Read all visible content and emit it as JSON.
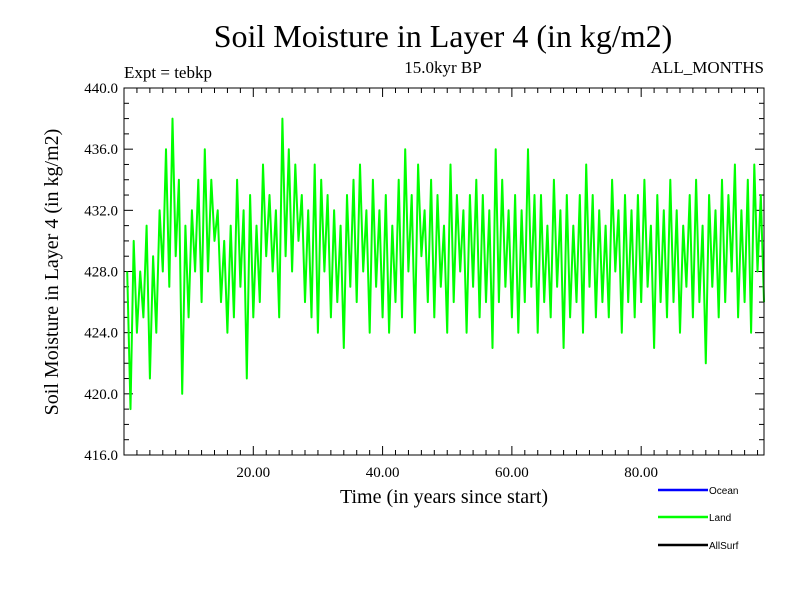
{
  "chart_data": {
    "type": "line",
    "title": "Soil Moisture in Layer 4 (in kg/m2)",
    "subtitle": "15.0kyr BP",
    "experiment_label": "Expt = tebkp",
    "period_label": "ALL_MONTHS",
    "xlabel": "Time (in years since start)",
    "ylabel": "Soil Moisture in Layer 4 (in kg/m2)",
    "xlim": [
      0,
      99
    ],
    "ylim": [
      416,
      440
    ],
    "x_ticks": [
      20,
      40,
      60,
      80
    ],
    "x_tick_labels": [
      "20.00",
      "40.00",
      "60.00",
      "80.00"
    ],
    "y_ticks": [
      416,
      420,
      424,
      428,
      432,
      436,
      440
    ],
    "y_tick_labels": [
      "416.0",
      "420.0",
      "424.0",
      "428.0",
      "432.0",
      "436.0",
      "440.0"
    ],
    "legend": [
      {
        "name": "Ocean",
        "color": "#0000ff"
      },
      {
        "name": "Land",
        "color": "#00ff00"
      },
      {
        "name": "AllSurf",
        "color": "#000000"
      }
    ],
    "legend_position": "bottom-right",
    "series": [
      {
        "name": "Land",
        "color": "#00ff00",
        "x_start": 0.5,
        "x_step": 0.5,
        "values": [
          428,
          419,
          430,
          424,
          428,
          425,
          431,
          421,
          429,
          424,
          432,
          428,
          436,
          427,
          438,
          429,
          434,
          420,
          431,
          425,
          432,
          428,
          434,
          426,
          436,
          428,
          434,
          430,
          432,
          426,
          430,
          424,
          431,
          425,
          434,
          427,
          432,
          421,
          433,
          425,
          431,
          426,
          435,
          429,
          433,
          428,
          432,
          425,
          438,
          429,
          436,
          428,
          435,
          430,
          433,
          426,
          432,
          425,
          435,
          424,
          434,
          428,
          433,
          425,
          432,
          426,
          431,
          423,
          433,
          427,
          434,
          426,
          435,
          428,
          432,
          424,
          434,
          427,
          432,
          425,
          433,
          424,
          431,
          426,
          434,
          425,
          436,
          428,
          433,
          424,
          435,
          429,
          432,
          426,
          434,
          425,
          433,
          427,
          431,
          424,
          435,
          426,
          433,
          428,
          432,
          424,
          433,
          427,
          434,
          425,
          433,
          426,
          432,
          423,
          436,
          426,
          434,
          427,
          432,
          425,
          433,
          424,
          432,
          426,
          436,
          427,
          433,
          424,
          433,
          426,
          431,
          425,
          434,
          427,
          432,
          423,
          433,
          425,
          431,
          426,
          433,
          424,
          435,
          427,
          433,
          425,
          432,
          426,
          431,
          425,
          434,
          428,
          432,
          424,
          433,
          426,
          432,
          425,
          433,
          426,
          434,
          427,
          431,
          423,
          433,
          426,
          432,
          425,
          434,
          426,
          432,
          424,
          431,
          427,
          433,
          425,
          434,
          426,
          431,
          422,
          433,
          427,
          432,
          425,
          434,
          426,
          433,
          428,
          435,
          425,
          432,
          426,
          434,
          424,
          435,
          428,
          433,
          426
        ]
      }
    ]
  }
}
